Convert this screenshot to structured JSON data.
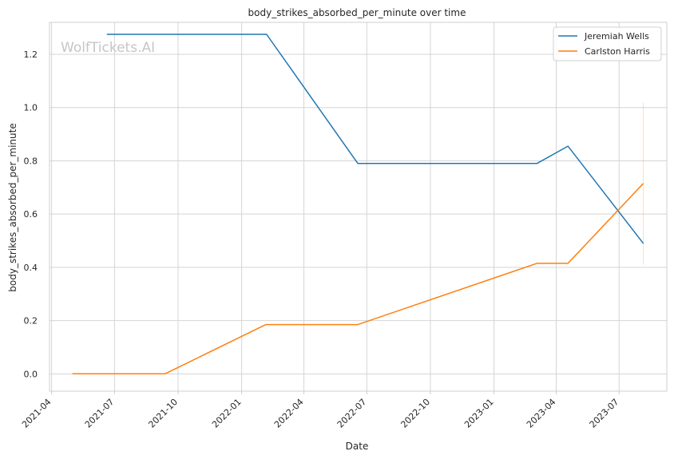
{
  "chart_data": {
    "type": "line",
    "title": "body_strikes_absorbed_per_minute over time",
    "xlabel": "Date",
    "ylabel": "body_strikes_absorbed_per_minute",
    "watermark": "WolfTickets.AI",
    "xlim": [
      "2021-03-29",
      "2023-09-08"
    ],
    "ylim": [
      -0.065,
      1.32
    ],
    "x_ticks": [
      "2021-04",
      "2021-07",
      "2021-10",
      "2022-01",
      "2022-04",
      "2022-07",
      "2022-10",
      "2023-01",
      "2023-04",
      "2023-07"
    ],
    "y_ticks": [
      "0.0",
      "0.2",
      "0.4",
      "0.6",
      "0.8",
      "1.0",
      "1.2"
    ],
    "grid": true,
    "legend_position": "top-right",
    "series": [
      {
        "name": "Jeremiah Wells",
        "color": "#1f77b4",
        "points": [
          {
            "x": "2021-06-20",
            "y": 1.275
          },
          {
            "x": "2022-02-06",
            "y": 1.275
          },
          {
            "x": "2022-06-18",
            "y": 0.79
          },
          {
            "x": "2023-03-04",
            "y": 0.79
          },
          {
            "x": "2023-04-18",
            "y": 0.855
          },
          {
            "x": "2023-08-05",
            "y": 0.49
          }
        ]
      },
      {
        "name": "Carlston Harris",
        "color": "#ff7f0e",
        "points": [
          {
            "x": "2021-05-01",
            "y": 0.0
          },
          {
            "x": "2021-09-12",
            "y": 0.0
          },
          {
            "x": "2022-02-05",
            "y": 0.185
          },
          {
            "x": "2022-06-18",
            "y": 0.185
          },
          {
            "x": "2023-03-04",
            "y": 0.415
          },
          {
            "x": "2023-04-18",
            "y": 0.415
          },
          {
            "x": "2023-08-05",
            "y": 0.715
          }
        ],
        "error_band": {
          "x": "2023-08-05",
          "low": 0.41,
          "high": 1.02
        }
      }
    ]
  }
}
